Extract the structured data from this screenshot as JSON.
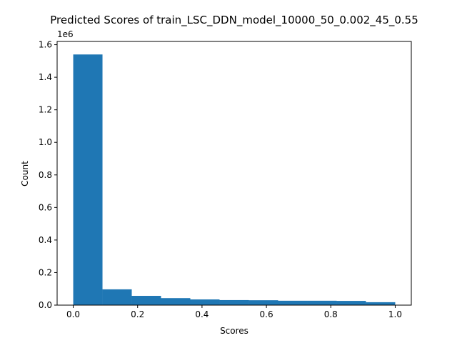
{
  "chart_data": {
    "type": "bar",
    "title": "Predicted Scores of train_LSC_DDN_model_10000_50_0.002_45_0.55",
    "xlabel": "Scores",
    "ylabel": "Count",
    "y_offset_label": "1e6",
    "xlim": [
      -0.05,
      1.05
    ],
    "ylim": [
      0,
      1.62
    ],
    "xticks": [
      0.0,
      0.2,
      0.4,
      0.6,
      0.8,
      1.0
    ],
    "xtick_labels": [
      "0.0",
      "0.2",
      "0.4",
      "0.6",
      "0.8",
      "1.0"
    ],
    "yticks": [
      0.0,
      0.2,
      0.4,
      0.6,
      0.8,
      1.0,
      1.2,
      1.4,
      1.6
    ],
    "ytick_labels": [
      "0.0",
      "0.2",
      "0.4",
      "0.6",
      "0.8",
      "1.0",
      "1.2",
      "1.4",
      "1.6"
    ],
    "bar_color": "#1f77b4",
    "bin_edges": [
      0.0,
      0.0909,
      0.1818,
      0.2727,
      0.3636,
      0.4545,
      0.5455,
      0.6364,
      0.7273,
      0.8182,
      0.9091,
      1.0
    ],
    "values": [
      1.54,
      0.097,
      0.057,
      0.043,
      0.035,
      0.031,
      0.03,
      0.027,
      0.027,
      0.026,
      0.018
    ],
    "grid": false,
    "legend": "none"
  }
}
